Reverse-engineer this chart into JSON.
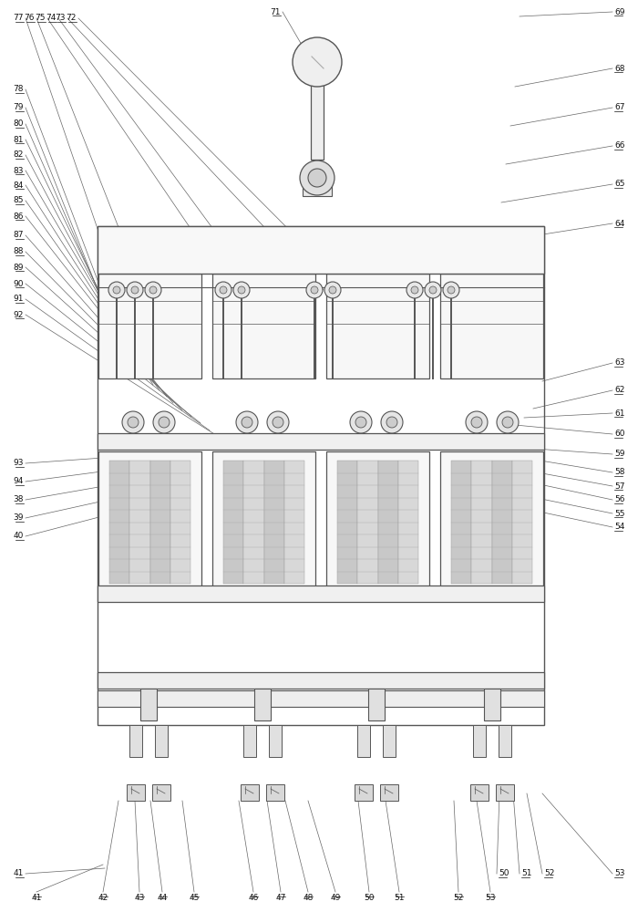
{
  "bg_color": "#ffffff",
  "line_color": "#555555",
  "fig_width": 7.0,
  "fig_height": 10.0,
  "left_annotations": [
    [
      "77",
      28,
      20,
      130,
      318
    ],
    [
      "76",
      40,
      20,
      157,
      318
    ],
    [
      "75",
      52,
      20,
      255,
      318
    ],
    [
      "74",
      64,
      20,
      283,
      318
    ],
    [
      "73",
      74,
      20,
      355,
      318
    ],
    [
      "72",
      86,
      20,
      383,
      318
    ],
    [
      "71",
      310,
      13,
      342,
      68
    ],
    [
      "78",
      28,
      98,
      130,
      368
    ],
    [
      "79",
      28,
      118,
      133,
      383
    ],
    [
      "80",
      28,
      136,
      140,
      393
    ],
    [
      "81",
      28,
      153,
      148,
      400
    ],
    [
      "82",
      28,
      170,
      155,
      408
    ],
    [
      "83",
      28,
      187,
      162,
      415
    ],
    [
      "84",
      28,
      203,
      168,
      422
    ],
    [
      "85",
      28,
      220,
      175,
      428
    ],
    [
      "86",
      28,
      237,
      183,
      435
    ],
    [
      "87",
      28,
      258,
      190,
      442
    ],
    [
      "88",
      28,
      276,
      200,
      450
    ],
    [
      "89",
      28,
      293,
      210,
      457
    ],
    [
      "90",
      28,
      311,
      220,
      464
    ],
    [
      "91",
      28,
      328,
      230,
      472
    ],
    [
      "92",
      28,
      345,
      240,
      479
    ],
    [
      "93",
      28,
      508,
      170,
      498
    ],
    [
      "94",
      28,
      528,
      180,
      508
    ],
    [
      "38",
      28,
      548,
      200,
      518
    ],
    [
      "39",
      28,
      568,
      210,
      528
    ],
    [
      "40",
      28,
      588,
      220,
      538
    ],
    [
      "41",
      28,
      958,
      115,
      952
    ]
  ],
  "right_annotations": [
    [
      "69",
      672,
      13,
      570,
      18
    ],
    [
      "68",
      672,
      75,
      565,
      95
    ],
    [
      "67",
      672,
      118,
      560,
      138
    ],
    [
      "66",
      672,
      160,
      555,
      180
    ],
    [
      "65",
      672,
      202,
      550,
      222
    ],
    [
      "64",
      672,
      245,
      545,
      265
    ],
    [
      "63",
      672,
      398,
      595,
      418
    ],
    [
      "62",
      672,
      428,
      585,
      448
    ],
    [
      "61",
      672,
      453,
      575,
      458
    ],
    [
      "60",
      672,
      476,
      565,
      466
    ],
    [
      "59",
      672,
      498,
      558,
      490
    ],
    [
      "58",
      672,
      518,
      550,
      498
    ],
    [
      "57",
      672,
      533,
      545,
      510
    ],
    [
      "56",
      672,
      548,
      540,
      520
    ],
    [
      "55",
      672,
      563,
      535,
      535
    ],
    [
      "54",
      672,
      578,
      530,
      548
    ],
    [
      "53",
      672,
      958,
      595,
      870
    ],
    [
      "52",
      595,
      958,
      578,
      870
    ],
    [
      "51",
      570,
      958,
      563,
      870
    ],
    [
      "50",
      545,
      958,
      548,
      870
    ]
  ],
  "bottom_annotations": [
    [
      "41",
      40,
      978,
      113,
      948
    ],
    [
      "42",
      113,
      978,
      130,
      878
    ],
    [
      "43",
      153,
      978,
      148,
      878
    ],
    [
      "44",
      178,
      978,
      165,
      878
    ],
    [
      "45",
      213,
      978,
      200,
      878
    ],
    [
      "46",
      278,
      978,
      262,
      878
    ],
    [
      "47",
      308,
      978,
      293,
      878
    ],
    [
      "48",
      338,
      978,
      313,
      878
    ],
    [
      "49",
      368,
      978,
      338,
      878
    ],
    [
      "50",
      405,
      978,
      393,
      878
    ],
    [
      "51",
      438,
      978,
      423,
      878
    ],
    [
      "52",
      503,
      978,
      498,
      878
    ],
    [
      "53",
      538,
      978,
      523,
      878
    ]
  ]
}
